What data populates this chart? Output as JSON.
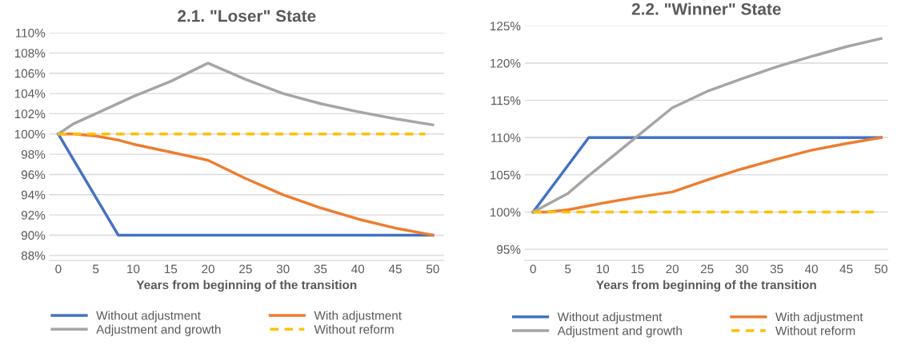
{
  "chart_data": [
    {
      "type": "line",
      "title": "2.1. \"Loser\" State",
      "xlabel": "Years from beginning of the transition",
      "xlim": [
        -1.2,
        51.5
      ],
      "xticks": [
        0,
        5,
        10,
        15,
        20,
        25,
        30,
        35,
        40,
        45,
        50
      ],
      "ylim": [
        87.5,
        110
      ],
      "yticks": [
        {
          "value": 88,
          "label": "88%"
        },
        {
          "value": 90,
          "label": "90%"
        },
        {
          "value": 92,
          "label": "92%"
        },
        {
          "value": 94,
          "label": "94%"
        },
        {
          "value": 96,
          "label": "96%"
        },
        {
          "value": 98,
          "label": "98%"
        },
        {
          "value": 100,
          "label": "100%"
        },
        {
          "value": 102,
          "label": "102%"
        },
        {
          "value": 104,
          "label": "104%"
        },
        {
          "value": 106,
          "label": "106%"
        },
        {
          "value": 108,
          "label": "108%"
        },
        {
          "value": 110,
          "label": "110%"
        }
      ],
      "grid": "y",
      "legend": "bottom",
      "series": [
        {
          "name": "Without adjustment",
          "color": "#4472c4",
          "x": [
            0,
            8,
            50
          ],
          "values": [
            100,
            90,
            90
          ]
        },
        {
          "name": "With adjustment",
          "color": "#ed7d31",
          "x": [
            0,
            2,
            5,
            8,
            10,
            15,
            20,
            25,
            30,
            35,
            40,
            45,
            50
          ],
          "values": [
            100,
            100,
            99.8,
            99.4,
            99.0,
            98.2,
            97.4,
            95.6,
            94.0,
            92.7,
            91.6,
            90.7,
            90.0
          ]
        },
        {
          "name": "Adjustment and growth",
          "color": "#a5a5a5",
          "x": [
            0,
            2,
            5,
            10,
            15,
            20,
            25,
            30,
            35,
            40,
            45,
            50
          ],
          "values": [
            100,
            101,
            102.0,
            103.7,
            105.2,
            107.0,
            105.4,
            104.0,
            103.0,
            102.2,
            101.5,
            100.9
          ]
        },
        {
          "name": "Without reform",
          "color": "#ffc000",
          "line_style": "dashed",
          "x": [
            0,
            49
          ],
          "values": [
            100,
            100
          ]
        }
      ]
    },
    {
      "type": "line",
      "title": "2.2. \"Winner\" State",
      "xlabel": "Years from beginning of the transition",
      "xlim": [
        -1.2,
        51
      ],
      "xticks": [
        0,
        5,
        10,
        15,
        20,
        25,
        30,
        35,
        40,
        45,
        50
      ],
      "ylim": [
        93.5,
        125
      ],
      "yticks": [
        {
          "value": 95,
          "label": "95%"
        },
        {
          "value": 100,
          "label": "100%"
        },
        {
          "value": 105,
          "label": "105%"
        },
        {
          "value": 110,
          "label": "110%"
        },
        {
          "value": 115,
          "label": "115%"
        },
        {
          "value": 120,
          "label": "120%"
        },
        {
          "value": 125,
          "label": "125%"
        }
      ],
      "grid": "y",
      "legend": "bottom",
      "series": [
        {
          "name": "Without adjustment",
          "color": "#4472c4",
          "x": [
            0,
            8,
            50
          ],
          "values": [
            100,
            110,
            110
          ]
        },
        {
          "name": "With adjustment",
          "color": "#ed7d31",
          "x": [
            0,
            2,
            5,
            10,
            15,
            20,
            25,
            30,
            35,
            40,
            45,
            50
          ],
          "values": [
            100,
            100,
            100.3,
            101.2,
            102.0,
            102.7,
            104.3,
            105.8,
            107.1,
            108.3,
            109.2,
            110
          ]
        },
        {
          "name": "Adjustment and growth",
          "color": "#a5a5a5",
          "x": [
            0,
            5,
            8,
            10,
            15,
            20,
            25,
            30,
            35,
            40,
            45,
            50
          ],
          "values": [
            100,
            102.5,
            104.9,
            106.4,
            110.2,
            114.0,
            116.2,
            117.9,
            119.5,
            120.9,
            122.2,
            123.3
          ]
        },
        {
          "name": "Without reform",
          "color": "#ffc000",
          "line_style": "dashed",
          "x": [
            0,
            49
          ],
          "values": [
            100,
            100
          ]
        }
      ]
    }
  ]
}
